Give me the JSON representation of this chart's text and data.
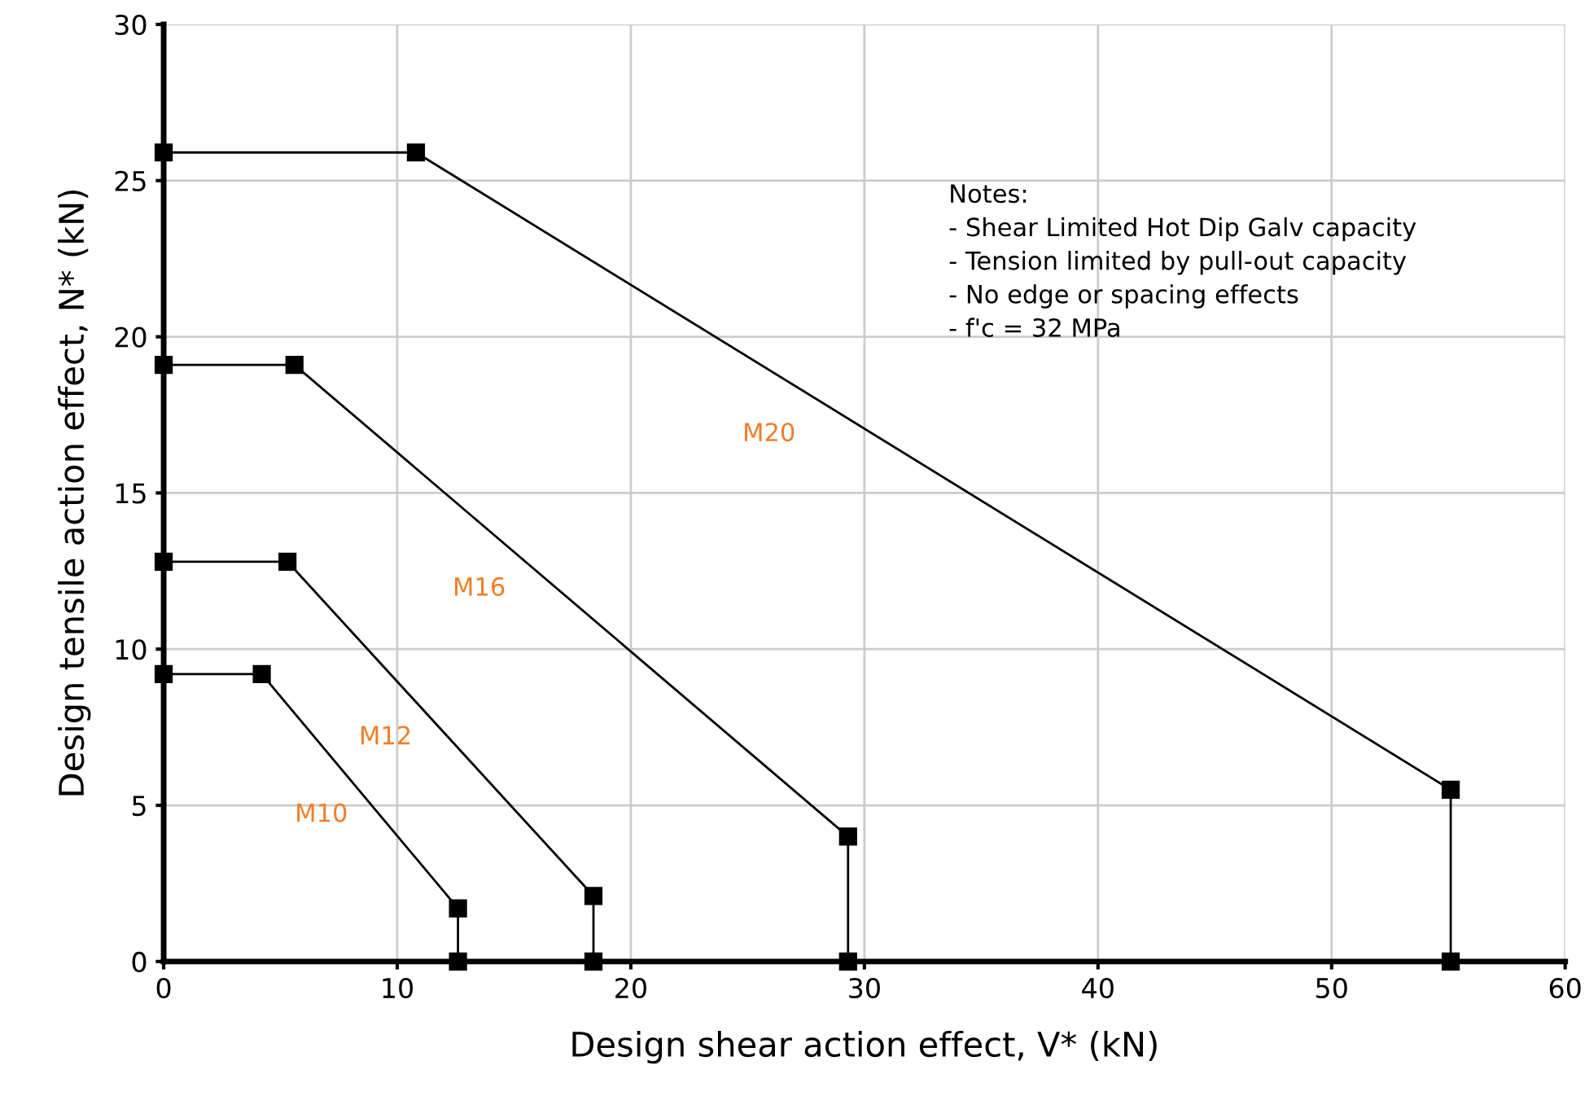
{
  "chart_data": {
    "type": "line",
    "xlabel": "Design shear action effect, V* (kN)",
    "ylabel": "Design tensile action effect, N* (kN)",
    "xlim": [
      0,
      60
    ],
    "xticks": [
      0,
      10,
      20,
      30,
      40,
      50,
      60
    ],
    "ylim": [
      0,
      30
    ],
    "yticks": [
      0,
      5,
      10,
      15,
      20,
      25,
      30
    ],
    "grid": true,
    "marker": "square",
    "line_style": "solid",
    "series": [
      {
        "name": "M20",
        "color": "#000000",
        "x": [
          0,
          10.8,
          55.1,
          55.1
        ],
        "values": [
          25.9,
          25.9,
          5.5,
          0
        ]
      },
      {
        "name": "M16",
        "color": "#000000",
        "x": [
          0,
          5.6,
          29.3,
          29.3
        ],
        "values": [
          19.1,
          19.1,
          4.0,
          0
        ]
      },
      {
        "name": "M12",
        "color": "#000000",
        "x": [
          0,
          5.3,
          18.4,
          18.4
        ],
        "values": [
          12.8,
          12.8,
          2.1,
          0
        ]
      },
      {
        "name": "M10",
        "color": "#000000",
        "x": [
          0,
          4.2,
          12.6,
          12.6
        ],
        "values": [
          9.2,
          9.2,
          1.7,
          0
        ]
      }
    ],
    "annotations": [
      "Notes:\n- Shear Limited Hot Dip Galv capacity\n- Tension limited by pull-out capacity\n- No edge or spacing effects\n- f'c = 32 MPa"
    ]
  }
}
